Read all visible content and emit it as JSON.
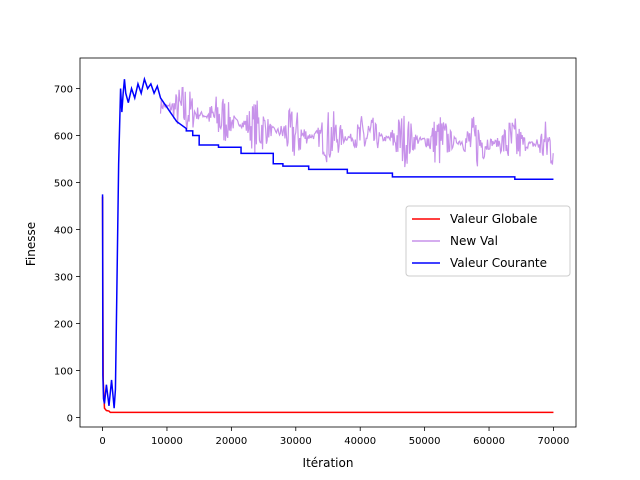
{
  "chart_data": {
    "type": "line",
    "title": "",
    "xlabel": "Itération",
    "ylabel": "Finesse",
    "xlim": [
      -3500,
      73500
    ],
    "ylim": [
      -20,
      765
    ],
    "xticks": [
      0,
      10000,
      20000,
      30000,
      40000,
      50000,
      60000,
      70000
    ],
    "yticks": [
      0,
      100,
      200,
      300,
      400,
      500,
      600,
      700
    ],
    "grid": false,
    "legend": "center-right",
    "series": [
      {
        "name": "Valeur Globale",
        "color": "#ff0000",
        "x": [
          0,
          100,
          300,
          600,
          1000,
          1200,
          70000
        ],
        "y": [
          470,
          80,
          20,
          15,
          14,
          11,
          11
        ]
      },
      {
        "name": "New Val",
        "color": "#c792ea",
        "noise": {
          "x_start": 9000,
          "x_end": 70000,
          "center": [
            [
              9000,
              665
            ],
            [
              20000,
              630
            ],
            [
              30000,
              600
            ],
            [
              70000,
              580
            ]
          ],
          "amplitude": 60,
          "seed": 7
        }
      },
      {
        "name": "Valeur Courante",
        "color": "#0000ff",
        "x": [
          0,
          50,
          150,
          300,
          600,
          1000,
          1400,
          1800,
          2000,
          2200,
          2500,
          2800,
          3000,
          3200,
          3400,
          3600,
          4000,
          4500,
          5000,
          5500,
          6000,
          6500,
          7000,
          7500,
          8000,
          8500,
          9000,
          9500,
          10000,
          10500,
          11000,
          11500,
          12000,
          13000,
          13000,
          14000,
          14000,
          15000,
          15000,
          18000,
          18000,
          21500,
          21500,
          26500,
          26500,
          28000,
          28000,
          32000,
          32000,
          38000,
          38000,
          45000,
          45000,
          64000,
          64000,
          70000
        ],
        "y": [
          475,
          90,
          40,
          30,
          70,
          25,
          80,
          20,
          60,
          250,
          540,
          700,
          650,
          690,
          720,
          690,
          670,
          700,
          680,
          710,
          690,
          720,
          700,
          710,
          690,
          705,
          680,
          670,
          660,
          650,
          640,
          630,
          625,
          615,
          610,
          610,
          600,
          600,
          580,
          580,
          575,
          575,
          562,
          562,
          540,
          540,
          535,
          535,
          528,
          528,
          520,
          520,
          512,
          512,
          507,
          507
        ]
      }
    ]
  }
}
